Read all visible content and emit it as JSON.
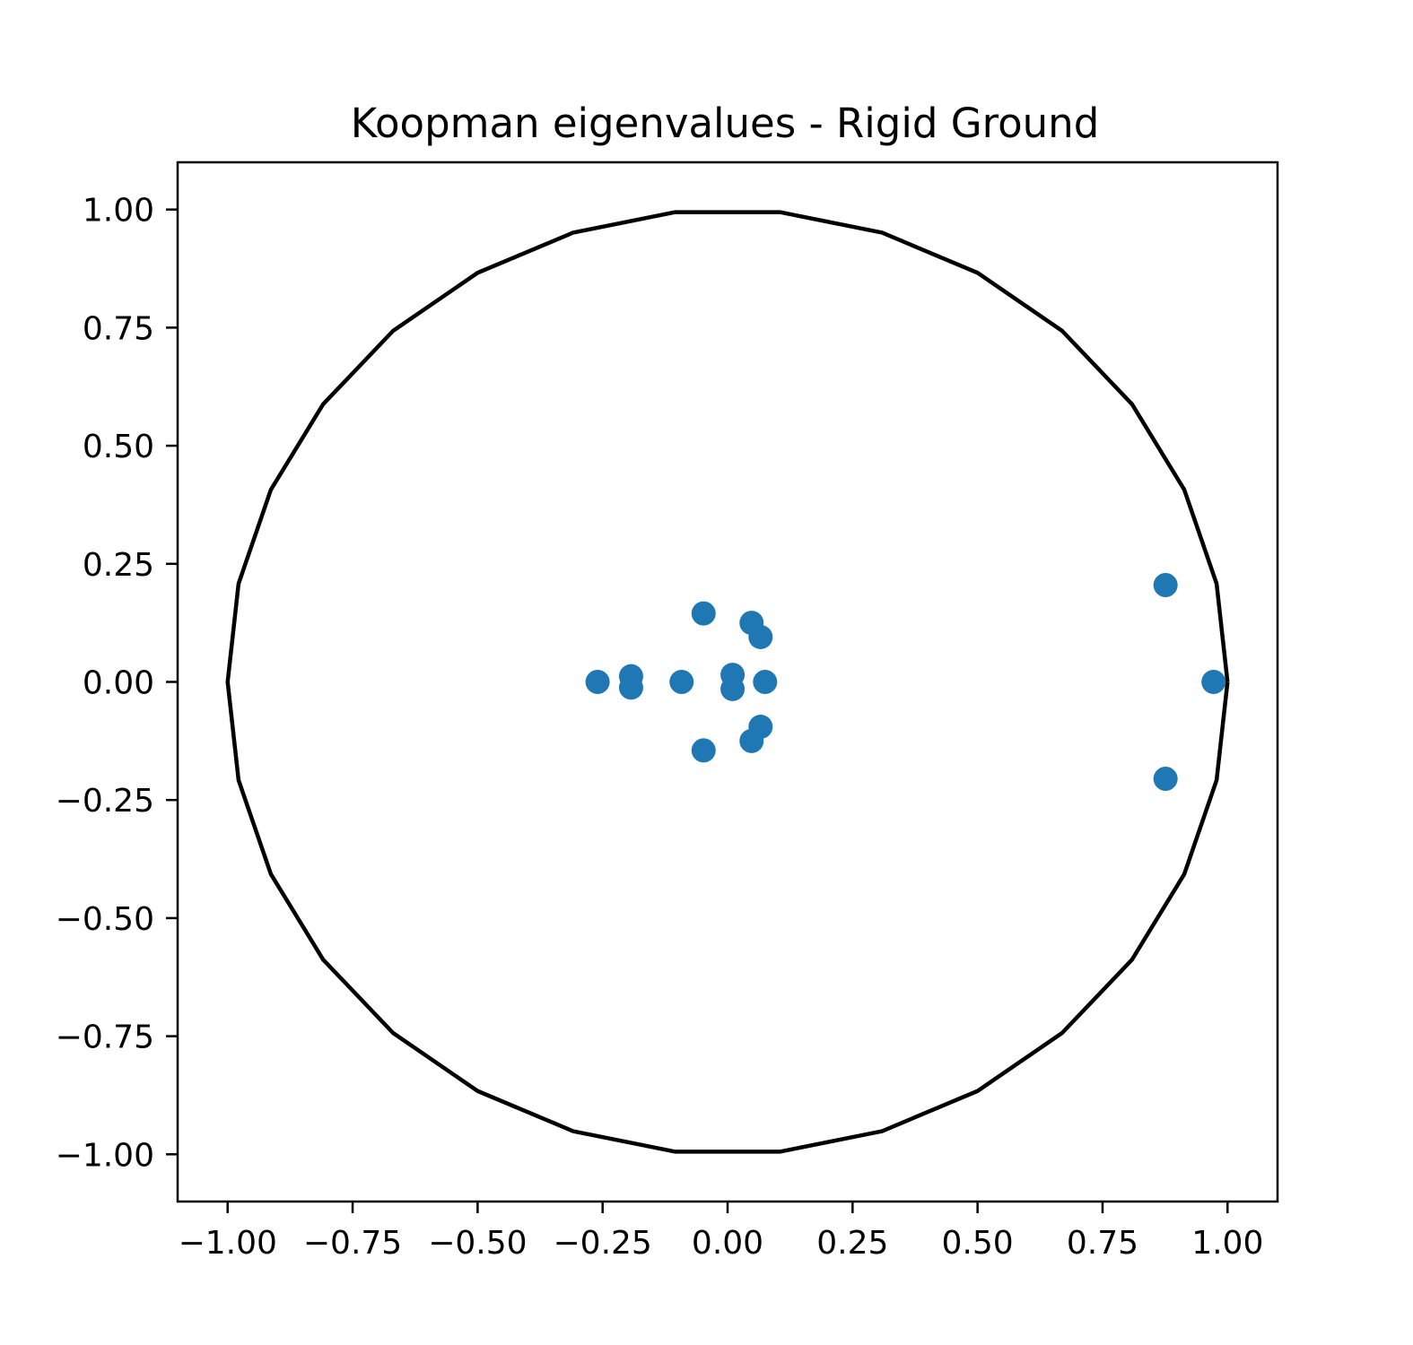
{
  "chart_data": {
    "type": "scatter",
    "title": "Koopman eigenvalues - Rigid Ground",
    "xlabel": "",
    "ylabel": "",
    "xlim": [
      -1.1,
      1.1
    ],
    "ylim": [
      -1.1,
      1.1
    ],
    "grid": false,
    "x_ticks": [
      -1.0,
      -0.75,
      -0.5,
      -0.25,
      0.0,
      0.25,
      0.5,
      0.75,
      1.0
    ],
    "y_ticks": [
      -1.0,
      -0.75,
      -0.5,
      -0.25,
      0.0,
      0.25,
      0.5,
      0.75,
      1.0
    ],
    "x_tick_labels": [
      "−1.00",
      "−0.75",
      "−0.50",
      "−0.25",
      "0.00",
      "0.25",
      "0.50",
      "0.75",
      "1.00"
    ],
    "y_tick_labels": [
      "−1.00",
      "−0.75",
      "−0.50",
      "−0.25",
      "0.00",
      "0.25",
      "0.50",
      "0.75",
      "1.00"
    ],
    "unit_circle": {
      "center": [
        0,
        0
      ],
      "radius": 1.0,
      "color": "#000000",
      "segments": 30
    },
    "marker_color": "#1f77b4",
    "points": [
      {
        "x": -0.26,
        "y": 0.0
      },
      {
        "x": -0.193,
        "y": 0.012
      },
      {
        "x": -0.193,
        "y": -0.012
      },
      {
        "x": -0.092,
        "y": 0.0
      },
      {
        "x": -0.048,
        "y": 0.145
      },
      {
        "x": -0.048,
        "y": -0.145
      },
      {
        "x": 0.01,
        "y": 0.015
      },
      {
        "x": 0.01,
        "y": -0.015
      },
      {
        "x": 0.048,
        "y": 0.125
      },
      {
        "x": 0.048,
        "y": -0.125
      },
      {
        "x": 0.066,
        "y": 0.095
      },
      {
        "x": 0.066,
        "y": -0.095
      },
      {
        "x": 0.075,
        "y": 0.0
      },
      {
        "x": 0.876,
        "y": 0.205
      },
      {
        "x": 0.876,
        "y": -0.205
      },
      {
        "x": 0.972,
        "y": 0.0
      }
    ]
  }
}
